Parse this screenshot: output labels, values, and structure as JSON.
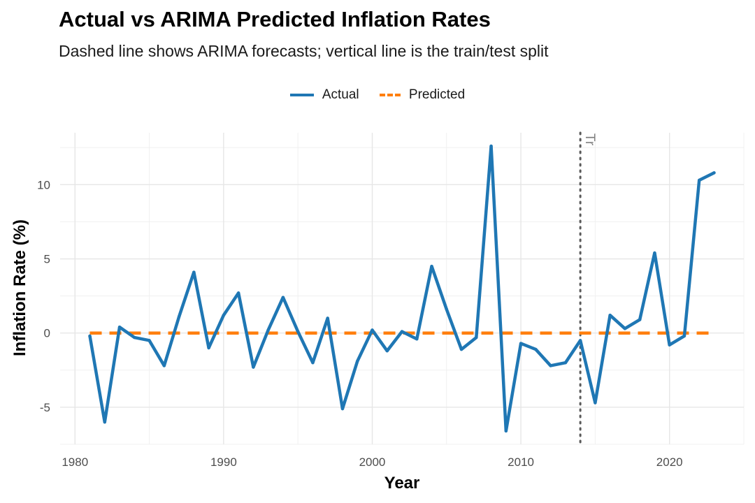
{
  "chart_data": {
    "type": "line",
    "title": "Actual vs ARIMA Predicted Inflation Rates",
    "subtitle": "Dashed line shows ARIMA forecasts; vertical line is the train/test split",
    "xlabel": "Year",
    "ylabel": "Inflation Rate (%)",
    "xlim": [
      1979,
      2025
    ],
    "ylim": [
      -7.5,
      13.5
    ],
    "x_ticks": [
      1980,
      1990,
      2000,
      2010,
      2020
    ],
    "y_ticks": [
      -5,
      0,
      5,
      10
    ],
    "y_tick_labels": [
      "-5",
      "0",
      "5",
      "10"
    ],
    "grid": true,
    "legend_position": "top",
    "split": {
      "x": 2014,
      "label": "Tr"
    },
    "colors": {
      "actual": "#1f77b4",
      "predicted": "#ff7f0e",
      "split": "#595959"
    },
    "x": [
      1981,
      1982,
      1983,
      1984,
      1985,
      1986,
      1987,
      1988,
      1989,
      1990,
      1991,
      1992,
      1993,
      1994,
      1995,
      1996,
      1997,
      1998,
      1999,
      2000,
      2001,
      2002,
      2003,
      2004,
      2005,
      2006,
      2007,
      2008,
      2009,
      2010,
      2011,
      2012,
      2013,
      2014,
      2015,
      2016,
      2017,
      2018,
      2019,
      2020,
      2021,
      2022,
      2023
    ],
    "series": [
      {
        "name": "Actual",
        "style": "solid",
        "values": [
          -0.2,
          -6.0,
          0.4,
          -0.3,
          -0.5,
          -2.2,
          1.1,
          4.1,
          -1.0,
          1.2,
          2.7,
          -2.3,
          0.2,
          2.4,
          0.1,
          -2.0,
          1.0,
          -5.1,
          -1.9,
          0.2,
          -1.2,
          0.1,
          -0.4,
          4.5,
          1.6,
          -1.1,
          -0.3,
          12.6,
          -6.6,
          -0.7,
          -1.1,
          -2.2,
          -2.0,
          -0.5,
          -4.7,
          1.2,
          0.3,
          0.9,
          5.4,
          -0.8,
          -0.2,
          10.3,
          10.8
        ]
      },
      {
        "name": "Predicted",
        "style": "dashed",
        "values": [
          0,
          0,
          0,
          0,
          0,
          0,
          0,
          0,
          0,
          0,
          0,
          0,
          0,
          0,
          0,
          0,
          0,
          0,
          0,
          0,
          0,
          0,
          0,
          0,
          0,
          0,
          0,
          0,
          0,
          0,
          0,
          0,
          0,
          0,
          0,
          0,
          0,
          0,
          0,
          0,
          0,
          0,
          0
        ]
      }
    ]
  }
}
